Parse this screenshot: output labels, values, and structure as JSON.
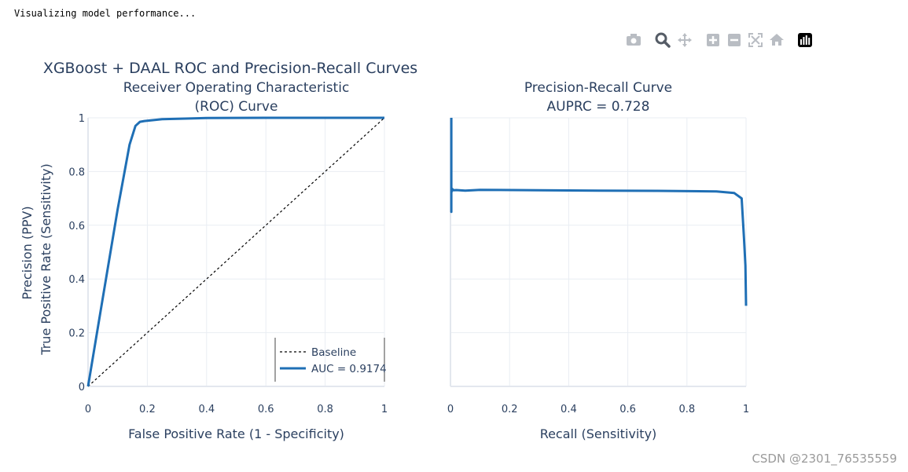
{
  "console": {
    "text": "Visualizing model performance..."
  },
  "watermark": "CSDN @2301_76535559",
  "toolbar": [
    {
      "name": "camera-icon",
      "label": "Download plot as png"
    },
    {
      "name": "zoom-icon",
      "label": "Zoom"
    },
    {
      "name": "pan-icon",
      "label": "Pan"
    },
    {
      "name": "zoom-in-icon",
      "label": "Zoom in"
    },
    {
      "name": "zoom-out-icon",
      "label": "Zoom out"
    },
    {
      "name": "autoscale-icon",
      "label": "Autoscale"
    },
    {
      "name": "home-icon",
      "label": "Reset axes"
    },
    {
      "name": "plotly-logo-icon",
      "label": "Produced with Plotly"
    }
  ],
  "colors": {
    "curve": "#1f6fb5",
    "baseline": "#000000",
    "grid": "#e9edf3",
    "text": "#2a3f5f"
  },
  "chart_data": [
    {
      "type": "line",
      "title": "XGBoost + DAAL ROC and Precision-Recall Curves",
      "subtitle_lines": [
        "Receiver Operating Characteristic",
        "(ROC) Curve"
      ],
      "xlabel": "False Positive Rate (1 - Specificity)",
      "ylabel": "True Positive Rate (Sensitivity)",
      "xlim": [
        0,
        1
      ],
      "ylim": [
        0,
        1
      ],
      "xticks": [
        "0",
        "0.2",
        "0.4",
        "0.6",
        "0.8",
        "1"
      ],
      "yticks": [
        "0",
        "0.2",
        "0.4",
        "0.6",
        "0.8",
        "1"
      ],
      "legend_position": "bottom-right",
      "series": [
        {
          "name": "Baseline",
          "style": "dashed",
          "x": [
            0,
            1
          ],
          "y": [
            0,
            1
          ]
        },
        {
          "name": "AUC = 0.9174",
          "style": "solid",
          "x": [
            0,
            0.05,
            0.1,
            0.14,
            0.16,
            0.175,
            0.19,
            0.25,
            0.4,
            0.6,
            0.8,
            1.0
          ],
          "y": [
            0,
            0.33,
            0.66,
            0.9,
            0.97,
            0.985,
            0.988,
            0.995,
            0.999,
            1.0,
            1.0,
            1.0
          ]
        }
      ]
    },
    {
      "type": "line",
      "subtitle_lines": [
        "Precision-Recall Curve",
        "AUPRC = 0.728"
      ],
      "xlabel": "Recall (Sensitivity)",
      "ylabel": "Precision (PPV)",
      "xlim": [
        0,
        1
      ],
      "ylim": [
        0,
        1
      ],
      "xticks": [
        "0",
        "0.2",
        "0.4",
        "0.6",
        "0.8",
        "1"
      ],
      "series": [
        {
          "name": "PR curve",
          "style": "solid",
          "x": [
            0.003,
            0.003,
            0.003,
            0.004,
            0.006,
            0.01,
            0.02,
            0.05,
            0.1,
            0.3,
            0.5,
            0.7,
            0.9,
            0.96,
            0.985,
            0.993,
            0.998,
            1.0
          ],
          "y": [
            1.0,
            0.65,
            0.73,
            0.725,
            0.735,
            0.73,
            0.731,
            0.729,
            0.732,
            0.73,
            0.729,
            0.728,
            0.726,
            0.72,
            0.7,
            0.55,
            0.45,
            0.3
          ]
        }
      ]
    }
  ]
}
